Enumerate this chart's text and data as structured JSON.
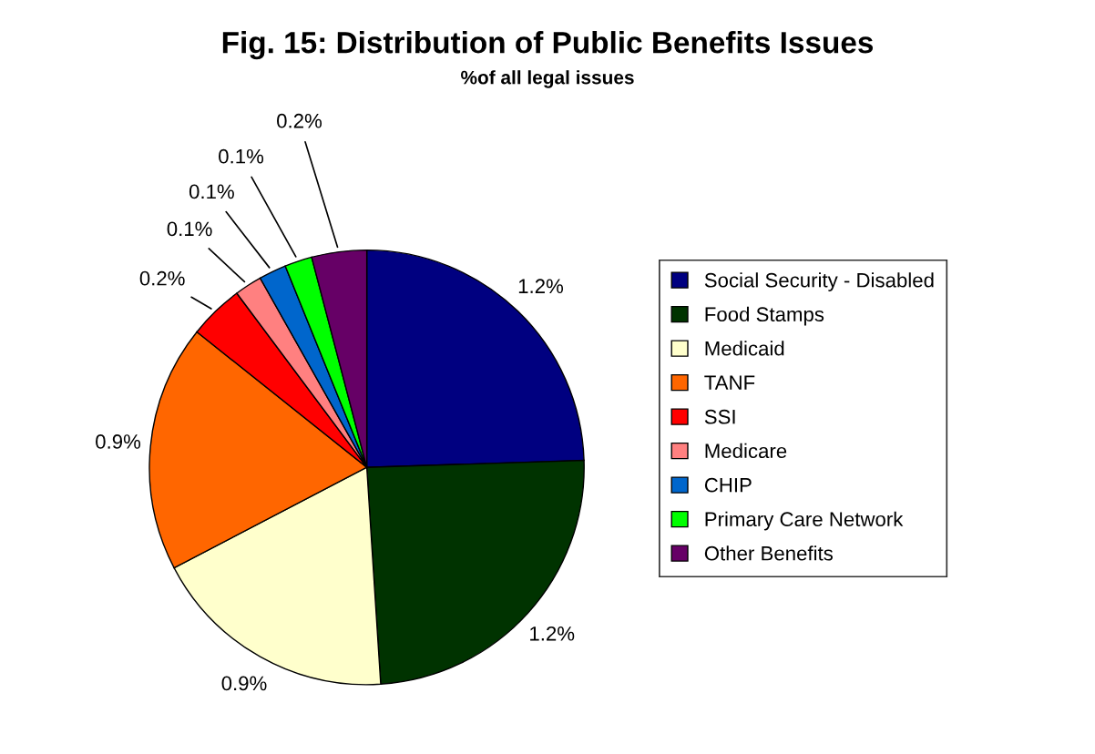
{
  "chart_data": {
    "type": "pie",
    "title": "Fig. 15: Distribution of Public Benefits Issues",
    "subtitle": "%of all legal issues",
    "categories": [
      "Social Security - Disabled",
      "Food Stamps",
      "Medicaid",
      "TANF",
      "SSI",
      "Medicare",
      "CHIP",
      "Primary Care Network",
      "Other Benefits"
    ],
    "values": [
      1.2,
      1.2,
      0.9,
      0.9,
      0.2,
      0.1,
      0.1,
      0.1,
      0.2
    ],
    "value_labels": [
      "1.2%",
      "1.2%",
      "0.9%",
      "0.9%",
      "0.2%",
      "0.1%",
      "0.1%",
      "0.1%",
      "0.2%"
    ],
    "colors": [
      "#000080",
      "#003300",
      "#ffffcc",
      "#ff6600",
      "#ff0000",
      "#ff8080",
      "#0066cc",
      "#00ff00",
      "#660066"
    ],
    "legend": "right"
  }
}
